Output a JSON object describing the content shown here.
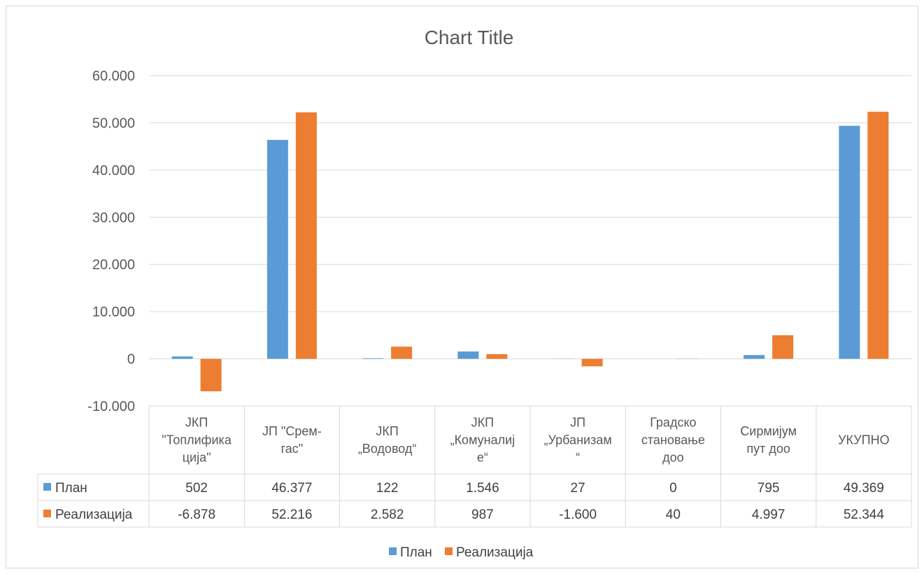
{
  "chart_data": {
    "type": "bar",
    "title": "Chart Title",
    "categories": [
      [
        "ЈКП",
        "\"Топлифика",
        "ција\""
      ],
      [
        "ЈП \"Срем-",
        "гас\""
      ],
      [
        "ЈКП",
        "„Водовод“"
      ],
      [
        "ЈКП",
        "„Комуналиј",
        "е“"
      ],
      [
        "ЈП",
        "„Урбанизам",
        "“"
      ],
      [
        "Градско",
        "становање",
        "доо"
      ],
      [
        "Сирмијум",
        "пут доо"
      ],
      [
        "УКУПНО"
      ]
    ],
    "series": [
      {
        "name": "План",
        "color": "#5b9bd5",
        "values": [
          502,
          46377,
          122,
          1546,
          27,
          0,
          795,
          49369
        ],
        "labels": [
          "502",
          "46.377",
          "122",
          "1.546",
          "27",
          "0",
          "795",
          "49.369"
        ]
      },
      {
        "name": "Реализација",
        "color": "#ed7d31",
        "values": [
          -6878,
          52216,
          2582,
          987,
          -1600,
          40,
          4997,
          52344
        ],
        "labels": [
          "-6.878",
          "52.216",
          "2.582",
          "987",
          "-1.600",
          "40",
          "4.997",
          "52.344"
        ]
      }
    ],
    "ylim": [
      -10000,
      60000
    ],
    "yticks": [
      60000,
      50000,
      40000,
      30000,
      20000,
      10000,
      0,
      -10000
    ],
    "ytick_labels": [
      "60.000",
      "50.000",
      "40.000",
      "30.000",
      "20.000",
      "10.000",
      "0",
      "-10.000"
    ],
    "grid": true,
    "legend": "bottom",
    "data_table": true
  }
}
